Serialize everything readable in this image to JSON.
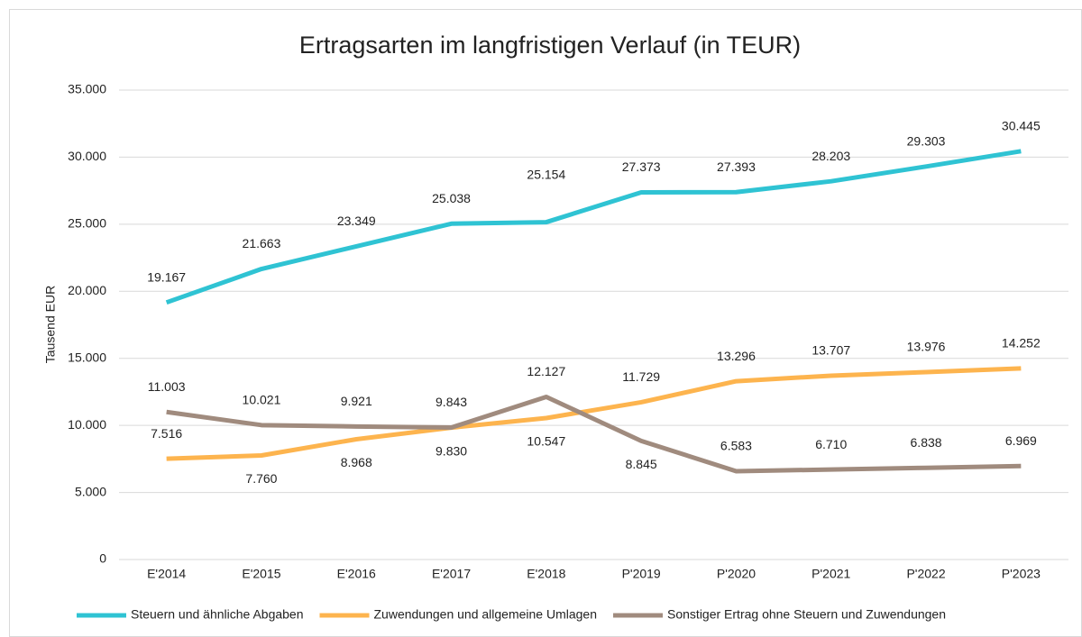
{
  "chart_data": {
    "type": "line",
    "title": "Ertragsarten im langfristigen Verlauf (in TEUR)",
    "y_label": "Tausend EUR",
    "categories": [
      "E'2014",
      "E'2015",
      "E'2016",
      "E'2017",
      "E'2018",
      "P'2019",
      "P'2020",
      "P'2021",
      "P'2022",
      "P'2023"
    ],
    "series": [
      {
        "name": "Steuern und ähnliche Abgaben",
        "color": "#2fc3d3",
        "values": [
          19167,
          21663,
          23349,
          25038,
          25154,
          27373,
          27393,
          28203,
          29303,
          30445
        ],
        "value_labels": [
          "19.167",
          "21.663",
          "23.349",
          "25.038",
          "25.154",
          "27.373",
          "27.393",
          "28.203",
          "29.303",
          "30.445"
        ]
      },
      {
        "name": "Zuwendungen und allgemeine Umlagen",
        "color": "#fdb44e",
        "values": [
          7516,
          7760,
          8968,
          9830,
          10547,
          11729,
          13296,
          13707,
          13976,
          14252
        ],
        "value_labels": [
          "7.516",
          "7.760",
          "8.968",
          "9.830",
          "10.547",
          "11.729",
          "13.296",
          "13.707",
          "13.976",
          "14.252"
        ]
      },
      {
        "name": "Sonstiger Ertrag ohne Steuern und Zuwendungen",
        "color": "#a08b7e",
        "values": [
          11003,
          10021,
          9921,
          9843,
          12127,
          8845,
          6583,
          6710,
          6838,
          6969
        ],
        "value_labels": [
          "11.003",
          "10.021",
          "9.921",
          "9.843",
          "12.127",
          "8.845",
          "6.583",
          "6.710",
          "6.838",
          "6.969"
        ]
      }
    ],
    "ylim": [
      0,
      35000
    ],
    "yticks": [
      0,
      {
        "value": 5000,
        "label": "5.000"
      },
      {
        "value": 10000,
        "label": "10.000"
      },
      {
        "value": 15000,
        "label": "15.000"
      },
      {
        "value": 20000,
        "label": "20.000"
      },
      {
        "value": 25000,
        "label": "25.000"
      },
      {
        "value": 30000,
        "label": "30.000"
      },
      {
        "value": 35000,
        "label": "35.000"
      }
    ],
    "grid": true,
    "legend": "bottom"
  }
}
